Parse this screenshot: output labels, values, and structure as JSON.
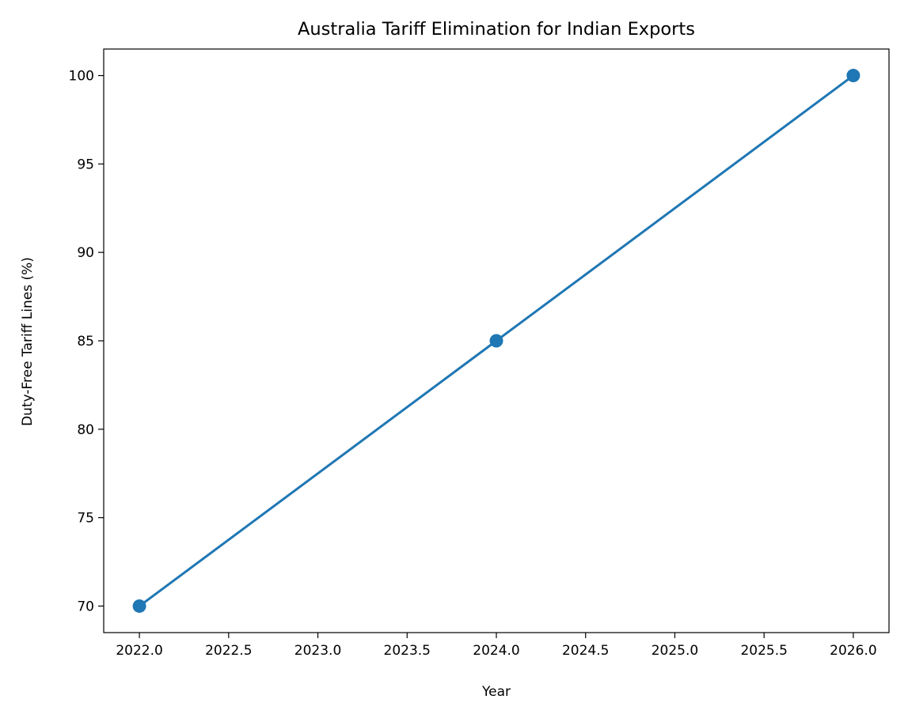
{
  "chart_data": {
    "type": "line",
    "title": "Australia Tariff Elimination for Indian Exports",
    "xlabel": "Year",
    "ylabel": "Duty-Free Tariff Lines (%)",
    "x": [
      2022,
      2024,
      2026
    ],
    "series": [
      {
        "values": [
          70,
          85,
          100
        ],
        "color": "#1f77b4",
        "marker": "circle"
      }
    ],
    "xlim": [
      2021.8,
      2026.2
    ],
    "ylim": [
      68.5,
      101.5
    ],
    "xticks": [
      2022.0,
      2022.5,
      2023.0,
      2023.5,
      2024.0,
      2024.5,
      2025.0,
      2025.5,
      2026.0
    ],
    "xtick_labels": [
      "2022.0",
      "2022.5",
      "2023.0",
      "2023.5",
      "2024.0",
      "2024.5",
      "2025.0",
      "2025.5",
      "2026.0"
    ],
    "yticks": [
      70,
      75,
      80,
      85,
      90,
      95,
      100
    ],
    "ytick_labels": [
      "70",
      "75",
      "80",
      "85",
      "90",
      "95",
      "100"
    ],
    "grid": false,
    "legend": false
  }
}
